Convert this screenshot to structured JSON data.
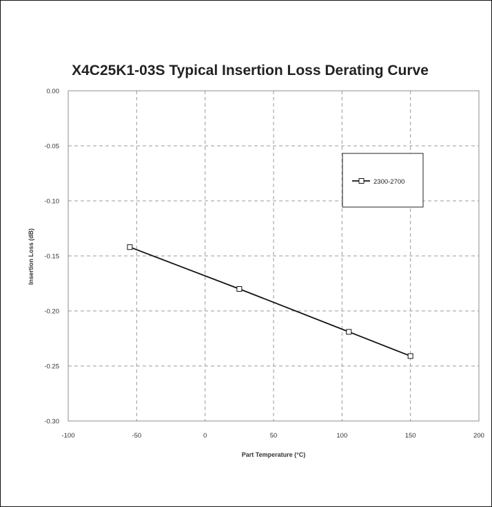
{
  "chart_data": {
    "type": "line",
    "title": "X4C25K1-03S Typical Insertion Loss Derating Curve",
    "xlabel": "Part Temperature (°C)",
    "ylabel": "Insertion Loss (dB)",
    "xlim": [
      -100,
      200
    ],
    "ylim": [
      -0.3,
      0.0
    ],
    "x_ticks": [
      "-100",
      "-50",
      "0",
      "50",
      "100",
      "150",
      "200"
    ],
    "y_ticks": [
      "0.00",
      "-0.05",
      "-0.10",
      "-0.15",
      "-0.20",
      "-0.25",
      "-0.30"
    ],
    "x_tick_values": [
      -100,
      -50,
      0,
      50,
      100,
      150,
      200
    ],
    "y_tick_values": [
      0.0,
      -0.05,
      -0.1,
      -0.15,
      -0.2,
      -0.25,
      -0.3
    ],
    "grid": true,
    "legend_position": "top-right",
    "series": [
      {
        "name": "2300-2700",
        "marker": "square",
        "color": "#111111",
        "x": [
          -55,
          25,
          105,
          150
        ],
        "y": [
          -0.142,
          -0.18,
          -0.219,
          -0.241
        ]
      }
    ]
  }
}
